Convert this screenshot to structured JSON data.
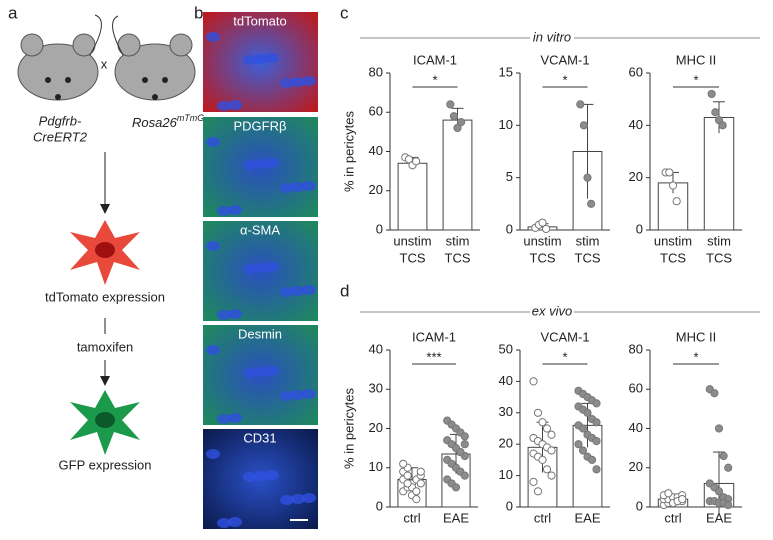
{
  "panels": {
    "a": {
      "letter": "a",
      "mouse1": [
        "Pdgfrb-",
        "CreERT2"
      ],
      "cross": "x",
      "mouse2": "Rosa26",
      "mouse2_sup": "mTmG",
      "step1": "tdTomato expression",
      "drug": "tamoxifen",
      "step2": "GFP expression"
    },
    "b": {
      "letter": "b",
      "stains": [
        "tdTomato",
        "PDGFRβ",
        "α-SMA",
        "Desmin",
        "CD31"
      ]
    },
    "c": {
      "letter": "c",
      "label": "in vitro"
    },
    "d": {
      "letter": "d",
      "label": "ex vivo"
    }
  },
  "chart_data": [
    {
      "type": "bar",
      "title": "ICAM-1",
      "ylabel": "% in pericytes",
      "categories": [
        [
          "unstim",
          "TCS"
        ],
        [
          "stim",
          "TCS"
        ]
      ],
      "values": [
        34,
        56
      ],
      "errors": [
        3,
        6
      ],
      "points": [
        [
          37,
          36,
          33,
          35
        ],
        [
          64,
          58,
          52,
          55
        ]
      ],
      "point_colors": [
        "#ffffff",
        "#8c8c8c"
      ],
      "ylim": [
        0,
        80
      ],
      "yticks": [
        0,
        20,
        40,
        60,
        80
      ],
      "annotation": "*"
    },
    {
      "type": "bar",
      "title": "VCAM-1",
      "categories": [
        [
          "unstim",
          "TCS"
        ],
        [
          "stim",
          "TCS"
        ]
      ],
      "values": [
        0.3,
        7.5
      ],
      "errors": [
        0.3,
        4.5
      ],
      "points": [
        [
          0.2,
          0.5,
          0.7,
          0.1
        ],
        [
          12,
          10,
          5,
          2.5
        ]
      ],
      "point_colors": [
        "#ffffff",
        "#8c8c8c"
      ],
      "ylim": [
        0,
        15
      ],
      "yticks": [
        0,
        5,
        10,
        15
      ],
      "annotation": "*"
    },
    {
      "type": "bar",
      "title": "MHC II",
      "categories": [
        [
          "unstim",
          "TCS"
        ],
        [
          "stim",
          "TCS"
        ]
      ],
      "values": [
        18,
        43
      ],
      "errors": [
        4,
        6
      ],
      "points": [
        [
          22,
          22,
          17,
          11
        ],
        [
          52,
          45,
          42,
          40
        ]
      ],
      "point_colors": [
        "#ffffff",
        "#8c8c8c"
      ],
      "ylim": [
        0,
        60
      ],
      "yticks": [
        0,
        20,
        40,
        60
      ],
      "annotation": "*"
    },
    {
      "type": "bar",
      "title": "ICAM-1",
      "ylabel": "% in pericytes",
      "categories": [
        [
          "ctrl"
        ],
        [
          "EAE"
        ]
      ],
      "values": [
        7,
        13.5
      ],
      "errors": [
        3,
        5
      ],
      "points": [
        [
          4,
          5,
          6,
          7,
          8,
          9,
          10,
          3,
          2,
          6,
          7,
          8,
          5,
          4,
          9,
          11,
          6
        ],
        [
          22,
          21,
          20,
          19,
          18,
          17,
          16,
          15,
          14,
          13,
          12,
          11,
          10,
          9,
          8,
          7,
          6,
          5,
          14,
          16
        ]
      ],
      "point_colors": [
        "#ffffff",
        "#8c8c8c"
      ],
      "ylim": [
        0,
        40
      ],
      "yticks": [
        0,
        10,
        20,
        30,
        40
      ],
      "annotation": "***"
    },
    {
      "type": "bar",
      "title": "VCAM-1",
      "categories": [
        [
          "ctrl"
        ],
        [
          "EAE"
        ]
      ],
      "values": [
        19,
        26
      ],
      "errors": [
        8,
        7
      ],
      "points": [
        [
          40,
          30,
          27,
          25,
          23,
          22,
          21,
          20,
          19,
          18,
          17,
          16,
          15,
          12,
          10,
          8,
          5
        ],
        [
          37,
          36,
          35,
          34,
          33,
          32,
          31,
          30,
          28,
          27,
          26,
          25,
          23,
          22,
          21,
          20,
          18,
          16,
          15,
          12
        ]
      ],
      "point_colors": [
        "#ffffff",
        "#8c8c8c"
      ],
      "ylim": [
        0,
        50
      ],
      "yticks": [
        0,
        10,
        20,
        30,
        40,
        50
      ],
      "annotation": "*"
    },
    {
      "type": "bar",
      "title": "MHC II",
      "categories": [
        [
          "ctrl"
        ],
        [
          "EAE"
        ]
      ],
      "values": [
        4,
        12
      ],
      "errors": [
        2,
        16
      ],
      "points": [
        [
          1,
          2,
          2,
          3,
          3,
          4,
          4,
          5,
          5,
          6,
          6,
          7,
          2,
          3,
          4
        ],
        [
          60,
          58,
          40,
          26,
          20,
          12,
          10,
          8,
          5,
          4,
          3,
          3,
          2,
          2,
          1
        ]
      ],
      "point_colors": [
        "#ffffff",
        "#8c8c8c"
      ],
      "ylim": [
        0,
        80
      ],
      "yticks": [
        0,
        20,
        40,
        60,
        80
      ],
      "annotation": "*"
    }
  ]
}
